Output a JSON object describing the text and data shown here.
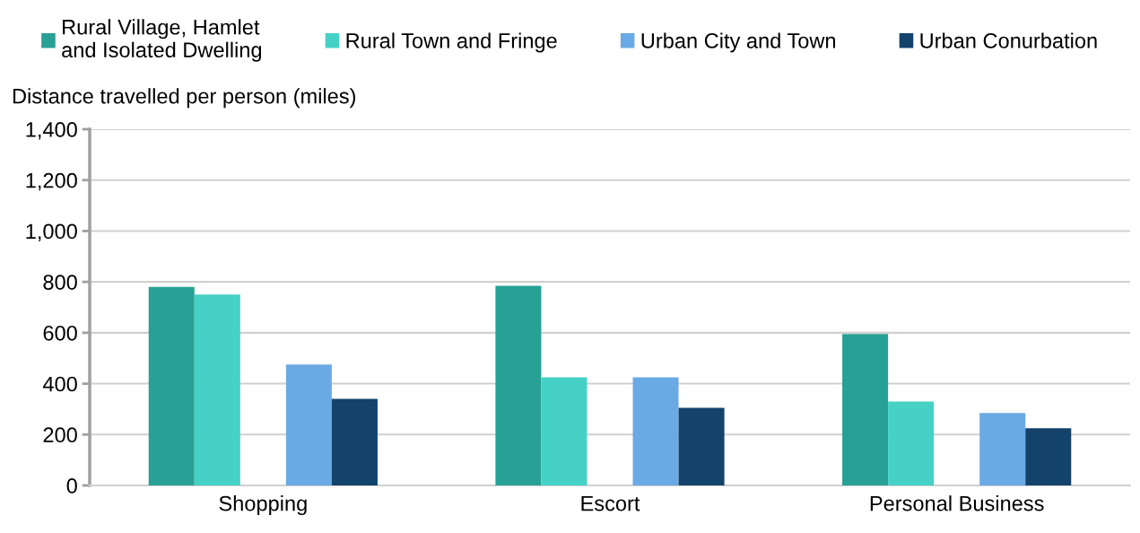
{
  "chart_data": {
    "type": "bar",
    "ylabel": "Distance travelled per person (miles)",
    "categories": [
      "Shopping",
      "Escort",
      "Personal Business"
    ],
    "series": [
      {
        "name": "Rural Village, Hamlet\nand Isolated Dwelling",
        "color": "#27a195",
        "values": [
          780,
          785,
          595
        ]
      },
      {
        "name": "Rural Town and Fringe",
        "color": "#45d1c6",
        "values": [
          750,
          425,
          330
        ]
      },
      {
        "name": "Urban City and Town",
        "color": "#6aaae4",
        "values": [
          475,
          425,
          285
        ]
      },
      {
        "name": "Urban Conurbation",
        "color": "#13426b",
        "values": [
          340,
          305,
          225
        ]
      }
    ],
    "ylim": [
      0,
      1400
    ],
    "yticks": [
      {
        "value": 0,
        "label": "0"
      },
      {
        "value": 200,
        "label": "200"
      },
      {
        "value": 400,
        "label": "400"
      },
      {
        "value": 600,
        "label": "600"
      },
      {
        "value": 800,
        "label": "800"
      },
      {
        "value": 1000,
        "label": "1,000"
      },
      {
        "value": 1200,
        "label": "1,200"
      },
      {
        "value": 1400,
        "label": "1,400"
      }
    ],
    "grid": "y",
    "legend": "top"
  }
}
